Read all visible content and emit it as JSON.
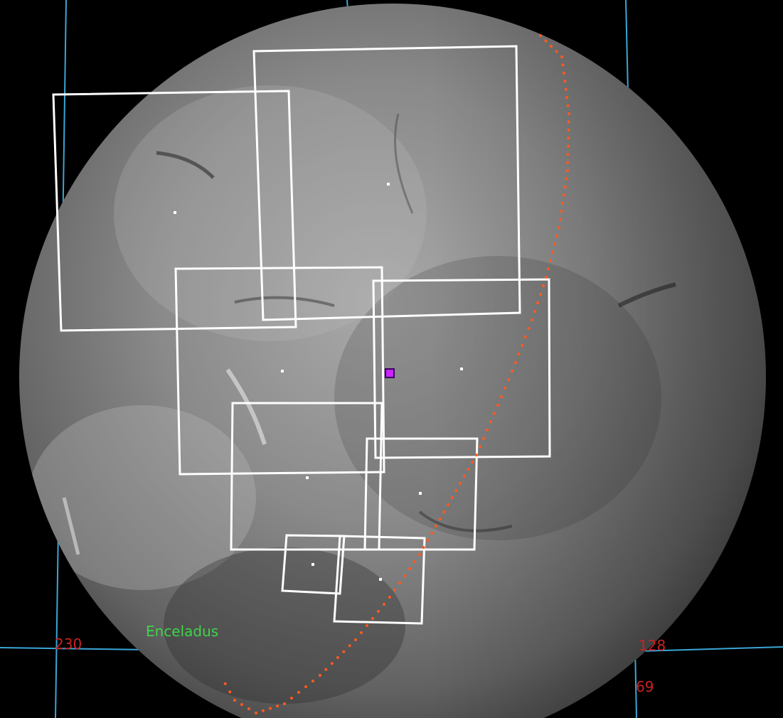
{
  "body_label": "Enceladus",
  "grid_labels": {
    "left": "230",
    "right": "128",
    "bottom": "69"
  },
  "colors": {
    "background": "#000000",
    "grid": "#3aa6d6",
    "footprint": "#ffffff",
    "trajectory": "#ff5a1f",
    "target_marker": "#cc22ff",
    "body_label": "#3fd44a",
    "coord_label": "#cc2222"
  },
  "icons": {
    "target_marker": "magenta-square-icon"
  }
}
